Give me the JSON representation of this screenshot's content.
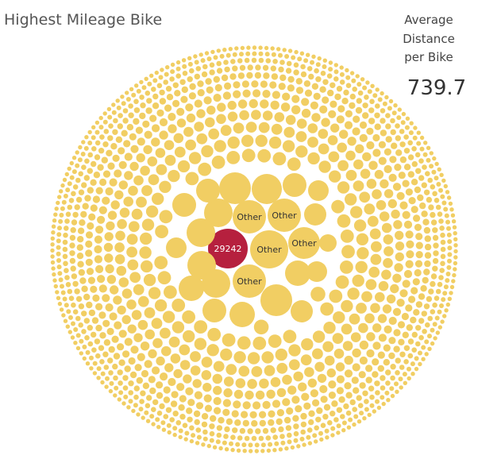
{
  "title": "Highest Mileage Bike",
  "kpi": {
    "label_lines": [
      "Average",
      "Distance",
      "per Bike"
    ],
    "value": "739.7"
  },
  "colors": {
    "bubble": "#F1CE63",
    "highlight": "#B6203E",
    "highlight_text": "#ffffff",
    "label_text": "#333333"
  },
  "chart_data": {
    "type": "packed-bubble",
    "title": "Highest Mileage Bike",
    "highlight": {
      "label": "29242"
    },
    "labeled_bubbles": [
      "Other",
      "Other",
      "Other",
      "Other",
      "Other"
    ]
  }
}
